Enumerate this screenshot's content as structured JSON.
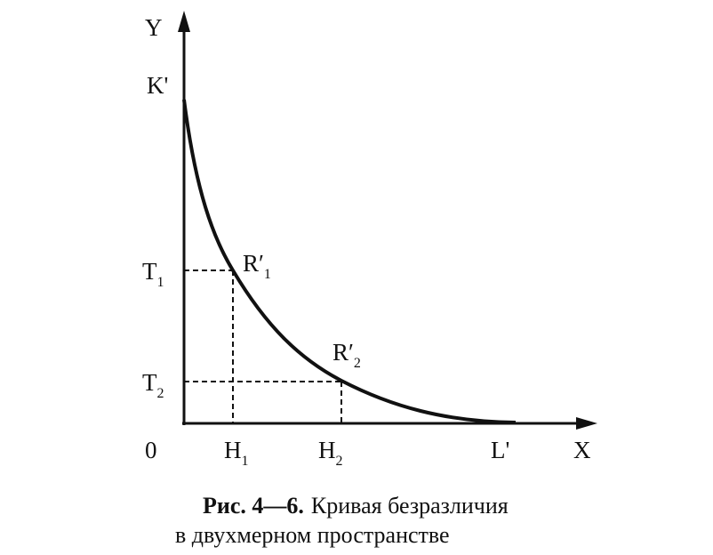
{
  "axes": {
    "y": "Y",
    "x": "X",
    "origin": "0"
  },
  "labels": {
    "k": "K'",
    "l": "L'",
    "t1": {
      "text": "T",
      "sub": "1"
    },
    "t2": {
      "text": "T",
      "sub": "2"
    },
    "h1": {
      "text": "H",
      "sub": "1"
    },
    "h2": {
      "text": "H",
      "sub": "2"
    },
    "r1": {
      "text": "R′",
      "sub": "1"
    },
    "r2": {
      "text": "R′",
      "sub": "2"
    }
  },
  "caption": {
    "label": "Рис. 4—6.",
    "line1": "Кривая безразличия",
    "line2": "в двухмерном пространстве"
  }
}
